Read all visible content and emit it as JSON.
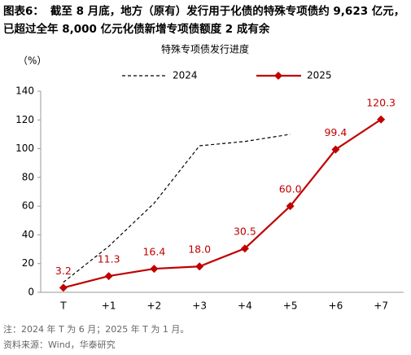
{
  "chart_data": {
    "type": "line",
    "figure_label": "图表6：",
    "title": "截至 8 月底，地方（原有）发行用于化债的特殊专项债约 9,623 亿元，已超过全年 8,000 亿元化债新增专项债额度 2 成有余",
    "subtitle": "特殊专项债发行进度",
    "y_unit": "（%）",
    "categories": [
      "T",
      "+1",
      "+2",
      "+3",
      "+4",
      "+5",
      "+6",
      "+7"
    ],
    "series": [
      {
        "name": "2024",
        "color": "#000000",
        "line_style": "dashed",
        "marker": null,
        "values": [
          7,
          32,
          62,
          102,
          105,
          110,
          null,
          null
        ]
      },
      {
        "name": "2025",
        "color": "#c00000",
        "line_style": "solid",
        "marker": "diamond",
        "values": [
          3.2,
          11.3,
          16.4,
          18.0,
          30.5,
          60.0,
          99.4,
          120.3
        ],
        "value_labels": [
          "3.2",
          "11.3",
          "16.4",
          "18.0",
          "30.5",
          "60.0",
          "99.4",
          "120.3"
        ]
      }
    ],
    "ylim": [
      0,
      140
    ],
    "yticks": [
      0,
      20,
      40,
      60,
      80,
      100,
      120,
      140
    ],
    "grid": false,
    "legend": "top",
    "note": "注：2024 年 T 为 6 月；2025 年 T 为 1 月。",
    "source": "资料来源：Wind，华泰研究"
  }
}
